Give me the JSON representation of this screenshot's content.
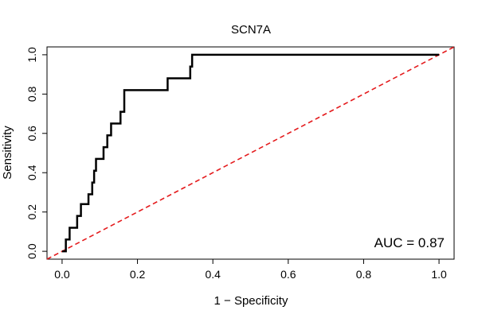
{
  "chart_data": {
    "type": "line",
    "title": "SCN7A",
    "xlabel": "1 − Specificity",
    "ylabel": "Sensitivity",
    "xlim": [
      -0.04,
      1.04
    ],
    "ylim": [
      -0.04,
      1.04
    ],
    "xticks": [
      0.0,
      0.2,
      0.4,
      0.6,
      0.8,
      1.0
    ],
    "yticks": [
      0.0,
      0.2,
      0.4,
      0.6,
      0.8,
      1.0
    ],
    "xtick_labels": [
      "0.0",
      "0.2",
      "0.4",
      "0.6",
      "0.8",
      "1.0"
    ],
    "ytick_labels": [
      "0.0",
      "0.2",
      "0.4",
      "0.6",
      "0.8",
      "1.0"
    ],
    "grid": false,
    "annotation": "AUC = 0.87",
    "colors": {
      "roc": "#000000",
      "reference": "#e41a1c"
    },
    "series": [
      {
        "style": "step",
        "x": [
          0.0,
          0.01,
          0.01,
          0.02,
          0.02,
          0.04,
          0.04,
          0.05,
          0.05,
          0.07,
          0.07,
          0.08,
          0.08,
          0.085,
          0.085,
          0.09,
          0.09,
          0.11,
          0.11,
          0.12,
          0.12,
          0.13,
          0.13,
          0.155,
          0.155,
          0.165,
          0.165,
          0.28,
          0.28,
          0.34,
          0.34,
          0.345,
          0.345,
          1.0
        ],
        "y": [
          0.0,
          0.0,
          0.06,
          0.06,
          0.12,
          0.12,
          0.18,
          0.18,
          0.24,
          0.24,
          0.29,
          0.29,
          0.35,
          0.35,
          0.41,
          0.41,
          0.47,
          0.47,
          0.53,
          0.53,
          0.59,
          0.59,
          0.65,
          0.65,
          0.71,
          0.71,
          0.82,
          0.82,
          0.88,
          0.88,
          0.94,
          0.94,
          1.0,
          1.0
        ]
      },
      {
        "style": "dashed",
        "x": [
          -0.04,
          1.04
        ],
        "y": [
          -0.04,
          1.04
        ]
      }
    ]
  }
}
